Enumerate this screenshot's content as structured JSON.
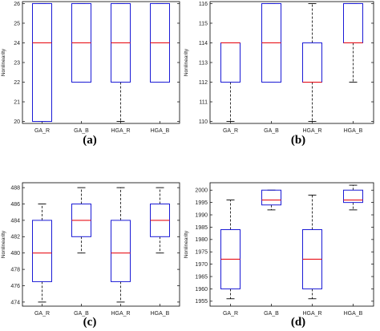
{
  "chart_data": [
    {
      "type": "box",
      "caption": "(a)",
      "ylabel": "Nonlinearity",
      "categories": [
        "GA_R",
        "GA_B",
        "HGA_R",
        "HGA_B"
      ],
      "ylim": [
        19.9,
        26.1
      ],
      "yticks": [
        20,
        21,
        22,
        23,
        24,
        25,
        26
      ],
      "boxes": [
        {
          "whisker_low": 20,
          "q1": 20,
          "median": 24,
          "q3": 26,
          "whisker_high": 26
        },
        {
          "whisker_low": 22,
          "q1": 22,
          "median": 24,
          "q3": 26,
          "whisker_high": 26
        },
        {
          "whisker_low": 20,
          "q1": 22,
          "median": 24,
          "q3": 26,
          "whisker_high": 26
        },
        {
          "whisker_low": 22,
          "q1": 22,
          "median": 24,
          "q3": 26,
          "whisker_high": 26
        }
      ]
    },
    {
      "type": "box",
      "caption": "(b)",
      "ylabel": "Nonlinearity",
      "categories": [
        "GA_R",
        "GA_B",
        "HGA_R",
        "HGA_B"
      ],
      "ylim": [
        109.9,
        116.1
      ],
      "yticks": [
        110,
        111,
        112,
        113,
        114,
        115,
        116
      ],
      "boxes": [
        {
          "whisker_low": 110,
          "q1": 112,
          "median": 114,
          "q3": 114,
          "whisker_high": 114
        },
        {
          "whisker_low": 112,
          "q1": 112,
          "median": 114,
          "q3": 116,
          "whisker_high": 116
        },
        {
          "whisker_low": 110,
          "q1": 112,
          "median": 112,
          "q3": 114,
          "whisker_high": 116
        },
        {
          "whisker_low": 112,
          "q1": 114,
          "median": 114,
          "q3": 116,
          "whisker_high": 116
        }
      ]
    },
    {
      "type": "box",
      "caption": "(c)",
      "ylabel": "Nonlinearity",
      "categories": [
        "GA_R",
        "GA_B",
        "HGA_R",
        "HGA_B"
      ],
      "ylim": [
        473.5,
        488.6
      ],
      "yticks": [
        474,
        476,
        478,
        480,
        482,
        484,
        486,
        488
      ],
      "boxes": [
        {
          "whisker_low": 474,
          "q1": 476.5,
          "median": 480,
          "q3": 484,
          "whisker_high": 486
        },
        {
          "whisker_low": 480,
          "q1": 482,
          "median": 484,
          "q3": 486,
          "whisker_high": 488
        },
        {
          "whisker_low": 474,
          "q1": 476.5,
          "median": 480,
          "q3": 484,
          "whisker_high": 488
        },
        {
          "whisker_low": 480,
          "q1": 482,
          "median": 484,
          "q3": 486,
          "whisker_high": 488
        }
      ]
    },
    {
      "type": "box",
      "caption": "(d)",
      "ylabel": "Nonlinearity",
      "categories": [
        "GA_R",
        "GA_B",
        "HGA_R",
        "HGA_B"
      ],
      "ylim": [
        1953,
        2003
      ],
      "yticks": [
        1955,
        1960,
        1965,
        1970,
        1975,
        1980,
        1985,
        1990,
        1995,
        2000
      ],
      "boxes": [
        {
          "whisker_low": 1956,
          "q1": 1960,
          "median": 1972,
          "q3": 1984,
          "whisker_high": 1996
        },
        {
          "whisker_low": 1992,
          "q1": 1994,
          "median": 1996,
          "q3": 2000,
          "whisker_high": 2000
        },
        {
          "whisker_low": 1956,
          "q1": 1960,
          "median": 1972,
          "q3": 1984,
          "whisker_high": 1998
        },
        {
          "whisker_low": 1992,
          "q1": 1995,
          "median": 1996,
          "q3": 2000,
          "whisker_high": 2002
        }
      ]
    }
  ],
  "colors": {
    "box": "#1a1ad6",
    "median": "#e8131b",
    "axis": "#000000"
  }
}
